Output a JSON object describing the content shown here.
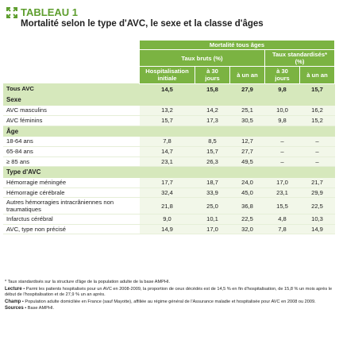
{
  "header": {
    "label": "TABLEAU 1",
    "title": "Mortalité selon le type d'AVC, le sexe et la classe d'âges"
  },
  "table": {
    "group": "Mortalité tous âges",
    "subgroups": [
      "Taux bruts (%)",
      "Taux standardisés* (%)"
    ],
    "columns": [
      "Hospitalisation initiale",
      "à 30 jours",
      "à un an",
      "à 30 jours",
      "à un an"
    ],
    "rows": [
      [
        "Tous AVC",
        "14,5",
        "15,8",
        "27,9",
        "9,8",
        "15,7"
      ],
      [
        "Sexe"
      ],
      [
        "AVC masculins",
        "13,2",
        "14,2",
        "25,1",
        "10,0",
        "16,2"
      ],
      [
        "AVC féminins",
        "15,7",
        "17,3",
        "30,5",
        "9,8",
        "15,2"
      ],
      [
        "Âge"
      ],
      [
        "18-64 ans",
        "7,8",
        "8,5",
        "12,7",
        "–",
        "–"
      ],
      [
        "65-84 ans",
        "14,7",
        "15,7",
        "27,7",
        "–",
        "–"
      ],
      [
        "≥ 85 ans",
        "23,1",
        "26,3",
        "49,5",
        "–",
        "–"
      ],
      [
        "Type d'AVC"
      ],
      [
        "Hémorragie méningée",
        "17,7",
        "18,7",
        "24,0",
        "17,0",
        "21,7"
      ],
      [
        "Hémorragie cérébrale",
        "32,4",
        "33,9",
        "45,0",
        "23,1",
        "29,9"
      ],
      [
        "Autres hémorragies intracrâniennes non traumatiques",
        "21,8",
        "25,0",
        "36,8",
        "15,5",
        "22,5"
      ],
      [
        "Infarctus cérébral",
        "9,0",
        "10,1",
        "22,5",
        "4,8",
        "10,3"
      ],
      [
        "AVC, type non précisé",
        "14,9",
        "17,0",
        "32,0",
        "7,8",
        "14,9"
      ]
    ]
  },
  "notes": {
    "footnote": "* Taux standardisés sur la structure d'âge de la population adulte de la base AMPHI.",
    "lecture": {
      "label": "Lecture",
      "text": "• Parmi les patients hospitalisés pour un AVC en 2008-2009, la proportion de ceux décédés est de 14,5 % en fin d'hospitalisation, de 15,8 % un mois après le début de l'hospitalisation et de 27,9 % un an après."
    },
    "champ": {
      "label": "Champ",
      "text": "• Population adulte domiciliée en France (sauf Mayotte), affiliée au régime général de l'Assurance maladie et hospitalisée pour AVC en 2008 ou 2009."
    },
    "sources": {
      "label": "Sources",
      "text": "• Base AMPHI."
    }
  }
}
